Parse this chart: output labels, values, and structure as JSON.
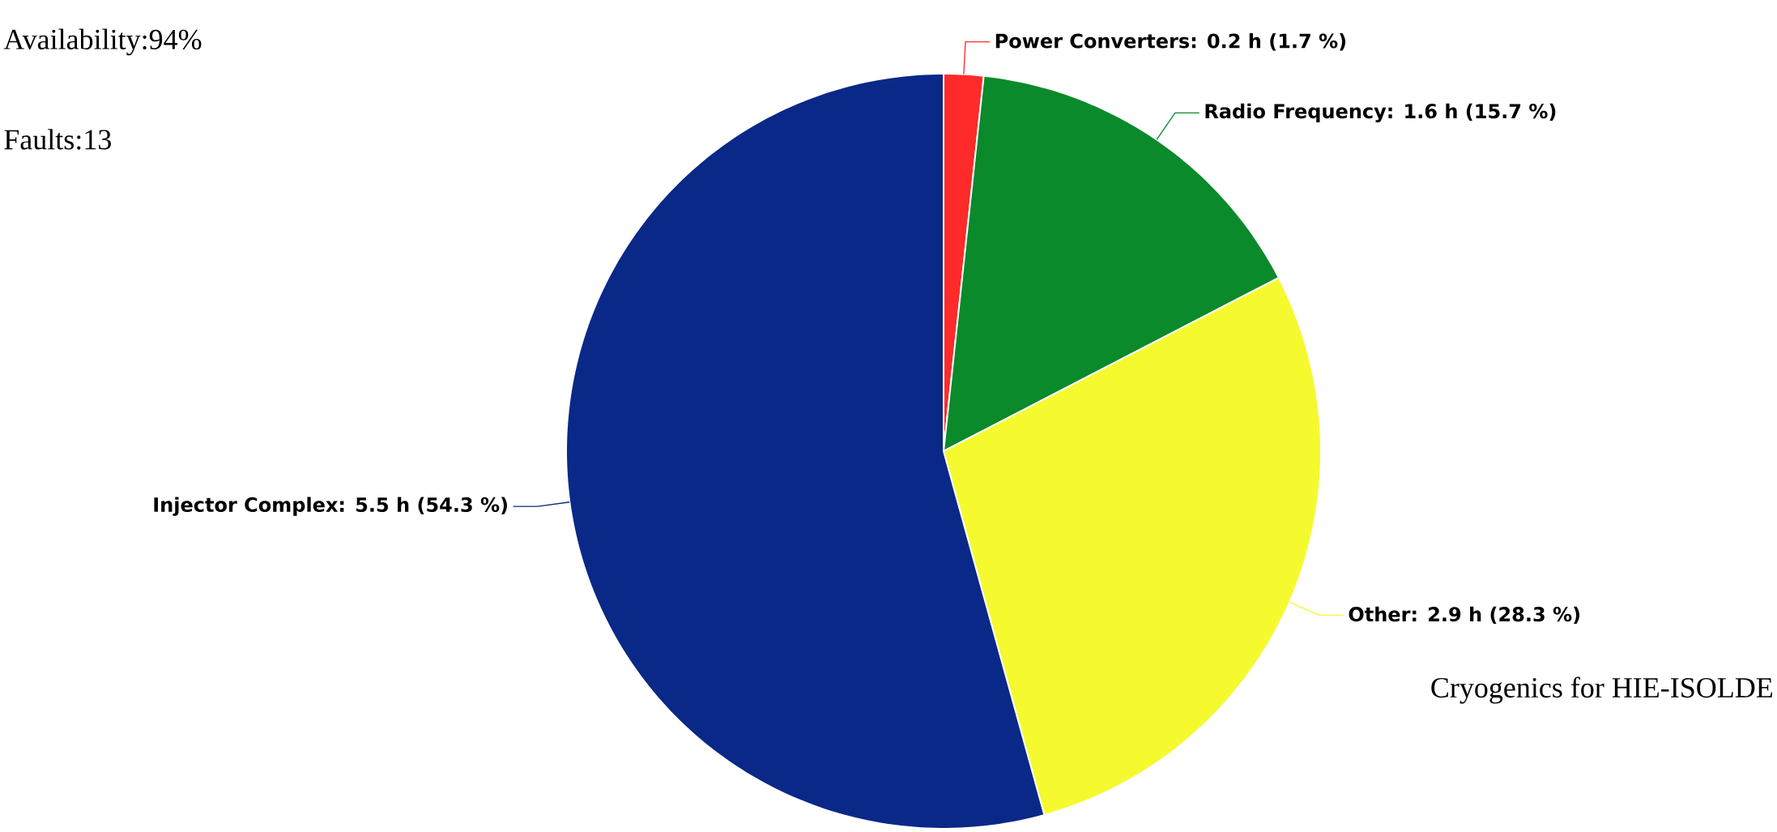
{
  "chart_data": {
    "type": "pie",
    "categories": [
      "Power Converters",
      "Radio Frequency",
      "Other",
      "Injector Complex"
    ],
    "values": [
      1.7,
      15.7,
      28.3,
      54.3
    ],
    "value_labels": [
      ": 0.2 h (1.7 %)",
      ": 1.6 h (15.7 %)",
      ": 2.9 h (28.3 %)",
      ": 5.5 h (54.3 %)"
    ],
    "colors": [
      "#ff2a2a",
      "#0a8a2a",
      "#f5fa2f",
      "#0a2887"
    ],
    "annotations": [
      "Availability:94%",
      "Faults:13",
      "Cryogenics for HIE-ISOLDE"
    ]
  }
}
